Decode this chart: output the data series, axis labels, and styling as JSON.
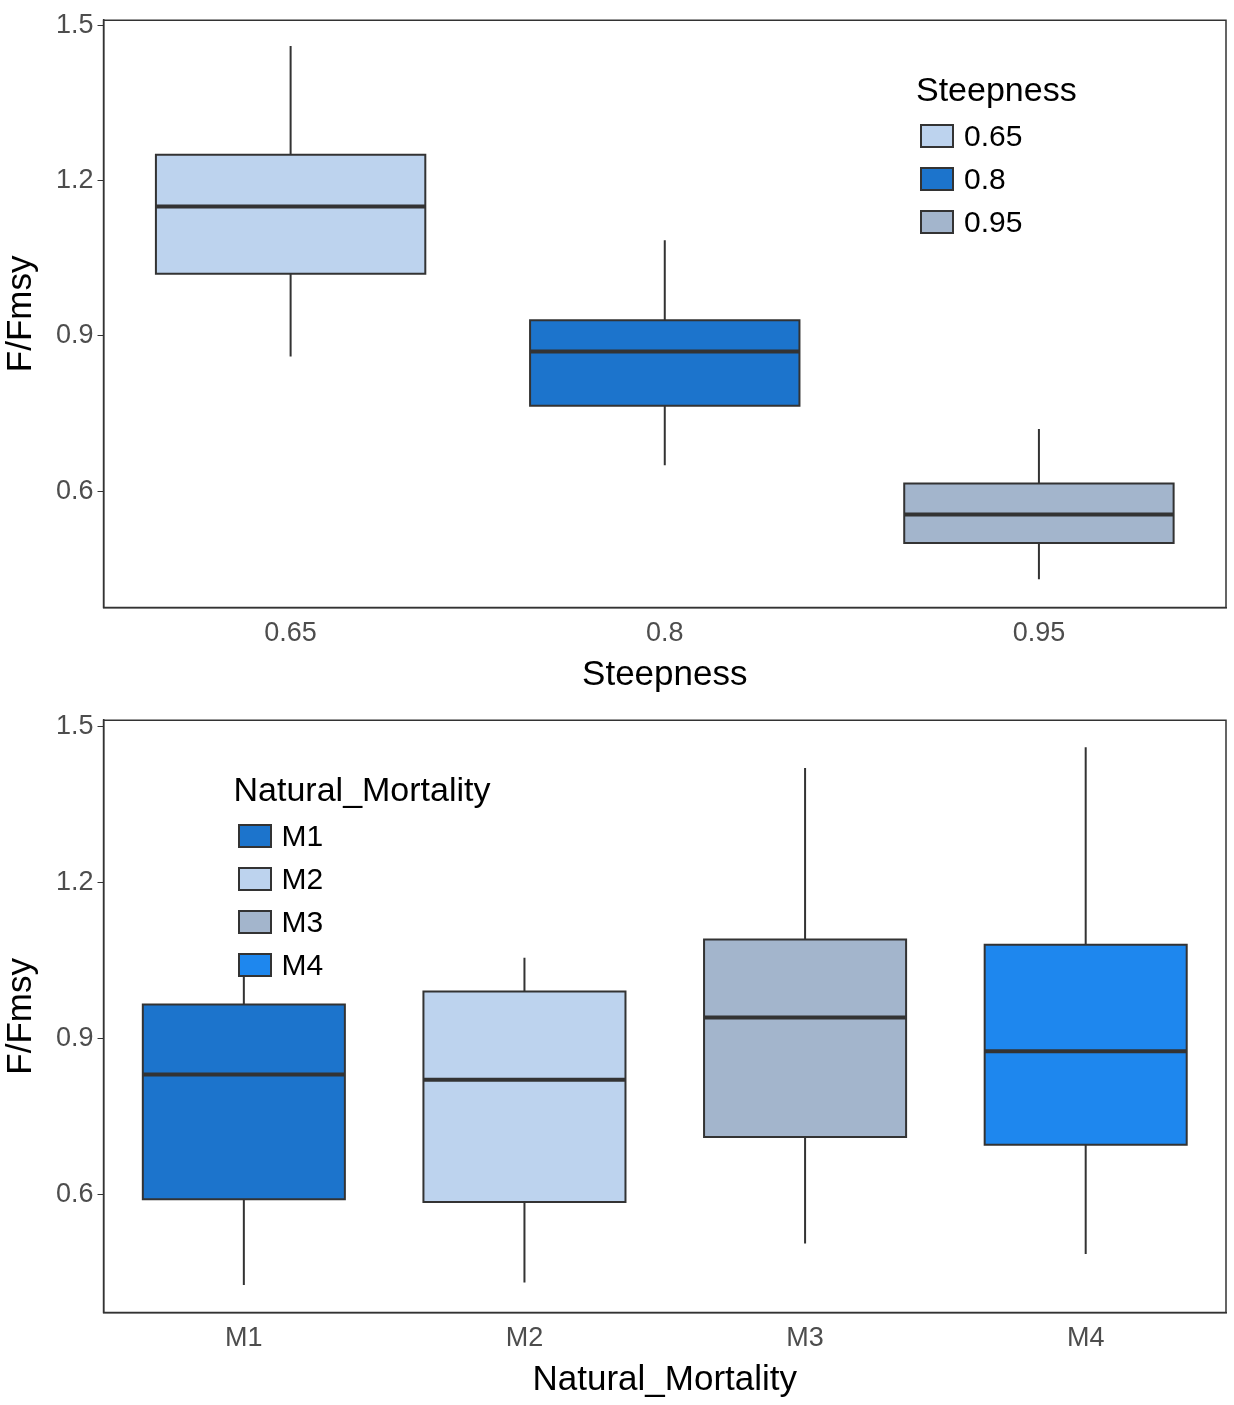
{
  "chart_data": [
    {
      "type": "box",
      "xlabel": "Steepness",
      "ylabel": "F/Fmsy",
      "legend_title": "Steepness",
      "legend": "top right",
      "grid": false,
      "categories": [
        "0.65",
        "0.8",
        "0.95"
      ],
      "series": [
        {
          "name": "0.65",
          "color": "#bdd3ee",
          "boxes": [
            {
              "low": 0.86,
              "q1": 1.02,
              "median": 1.15,
              "q3": 1.25,
              "high": 1.46
            },
            null,
            null
          ]
        },
        {
          "name": "0.8",
          "color": "#1c74cc",
          "boxes": [
            null,
            {
              "low": 0.65,
              "q1": 0.765,
              "median": 0.87,
              "q3": 0.93,
              "high": 1.085
            },
            null
          ]
        },
        {
          "name": "0.95",
          "color": "#a3b5cc",
          "boxes": [
            null,
            null,
            {
              "low": 0.43,
              "q1": 0.5,
              "median": 0.555,
              "q3": 0.615,
              "high": 0.72
            }
          ]
        }
      ],
      "ylim": [
        0.375,
        1.51
      ],
      "yticks": [
        0.6,
        0.9,
        1.2,
        1.5
      ]
    },
    {
      "type": "box",
      "xlabel": "Natural_Mortality",
      "ylabel": "F/Fmsy",
      "legend_title": "Natural_Mortality",
      "legend": "top left",
      "grid": false,
      "categories": [
        "M1",
        "M2",
        "M3",
        "M4"
      ],
      "series": [
        {
          "name": "M1",
          "color": "#1c74cc",
          "boxes": [
            {
              "low": 0.425,
              "q1": 0.59,
              "median": 0.83,
              "q3": 0.965,
              "high": 1.055
            },
            null,
            null,
            null
          ]
        },
        {
          "name": "M2",
          "color": "#bdd3ee",
          "boxes": [
            null,
            {
              "low": 0.43,
              "q1": 0.585,
              "median": 0.82,
              "q3": 0.99,
              "high": 1.055
            },
            null,
            null
          ]
        },
        {
          "name": "M3",
          "color": "#a3b5cc",
          "boxes": [
            null,
            null,
            {
              "low": 0.505,
              "q1": 0.71,
              "median": 0.94,
              "q3": 1.09,
              "high": 1.42
            },
            null
          ]
        },
        {
          "name": "M4",
          "color": "#1e87ee",
          "boxes": [
            null,
            null,
            null,
            {
              "low": 0.485,
              "q1": 0.695,
              "median": 0.875,
              "q3": 1.08,
              "high": 1.46
            }
          ]
        }
      ],
      "ylim": [
        0.372,
        1.512
      ],
      "yticks": [
        0.6,
        0.9,
        1.2,
        1.5
      ]
    }
  ]
}
